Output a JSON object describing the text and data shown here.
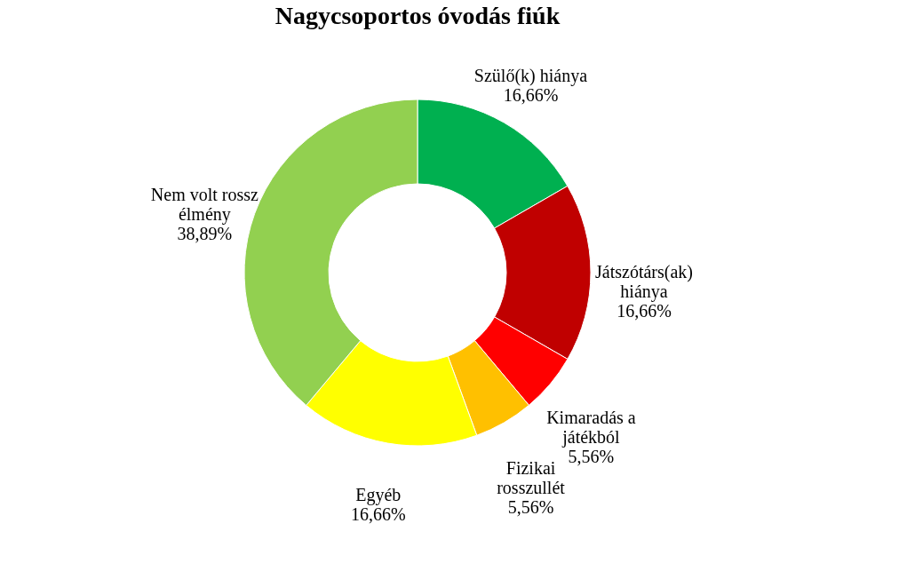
{
  "chart_data": {
    "type": "donut",
    "title": "Nagycsoportos óvodás fiúk",
    "categories": [
      "Szülő(k) hiánya",
      "Játszótárs(ak) hiánya",
      "Kimaradás a játékból",
      "Fizikai rosszullét",
      "Egyéb",
      "Nem volt rossz élmény"
    ],
    "values": [
      16.66,
      16.66,
      5.56,
      5.56,
      16.66,
      38.89
    ],
    "colors": [
      "#00b050",
      "#c00000",
      "#ff0000",
      "#ffc000",
      "#ffff00",
      "#92d050"
    ],
    "value_labels": [
      "16,66%",
      "16,66%",
      "5,56%",
      "5,56%",
      "16,66%",
      "38,89%"
    ],
    "legend": false
  }
}
